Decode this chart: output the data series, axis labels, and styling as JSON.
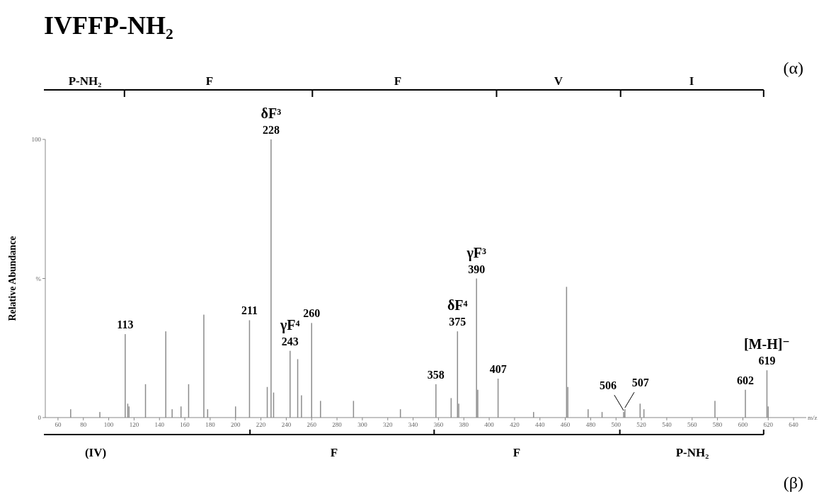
{
  "chart_data": {
    "type": "bar",
    "title": "IVFFP-NH₂",
    "xlabel": "m/z",
    "ylabel": "Relative Abundance",
    "x": [
      70,
      93,
      113,
      115,
      116,
      129,
      145,
      150,
      157,
      163,
      175,
      178,
      200,
      211,
      225,
      228,
      230,
      243,
      249,
      252,
      260,
      267,
      293,
      330,
      358,
      370,
      375,
      376,
      390,
      391,
      407,
      435,
      461,
      462,
      478,
      489,
      506,
      507,
      519,
      522,
      578,
      602,
      619,
      620
    ],
    "values": [
      3,
      2,
      30,
      5,
      4,
      12,
      31,
      3,
      4,
      12,
      37,
      3,
      4,
      35,
      11,
      100,
      9,
      24,
      21,
      8,
      34,
      6,
      6,
      3,
      12,
      7,
      31,
      5,
      50,
      10,
      14,
      2,
      47,
      11,
      3,
      2,
      2,
      3,
      5,
      3,
      6,
      10,
      17,
      4
    ],
    "color": "#8c8c8c",
    "xlim": [
      50,
      650
    ],
    "xticks": [
      60,
      80,
      100,
      120,
      140,
      160,
      180,
      200,
      220,
      240,
      260,
      280,
      300,
      320,
      340,
      360,
      380,
      400,
      420,
      440,
      460,
      480,
      500,
      520,
      540,
      560,
      580,
      600,
      620,
      640
    ],
    "ylim": [
      0,
      100
    ],
    "yticks": [
      0,
      {
        "value": 50,
        "label": "%"
      },
      100
    ],
    "grid": false,
    "annotations": [
      "(α)",
      "P-NH₂",
      "F",
      "F",
      "V",
      "I",
      "(β)",
      "(IV)",
      "F",
      "F",
      "P-NH₂",
      {
        "text": "113",
        "x": 113,
        "y": 30
      },
      {
        "text": "211",
        "x": 211,
        "y": 35
      },
      {
        "text": "228",
        "x": 228,
        "y": 100
      },
      {
        "text": "243",
        "x": 243,
        "y": 24
      },
      {
        "text": "260",
        "x": 260,
        "y": 34
      },
      {
        "text": "358",
        "x": 358,
        "y": 12
      },
      {
        "text": "375",
        "x": 375,
        "y": 31
      },
      {
        "text": "390",
        "x": 390,
        "y": 50
      },
      {
        "text": "407",
        "x": 407,
        "y": 14
      },
      {
        "text": "506",
        "x": 506,
        "y": 2
      },
      {
        "text": "507",
        "x": 507,
        "y": 3
      },
      {
        "text": "602",
        "x": 602,
        "y": 10
      },
      {
        "text": "619",
        "x": 619,
        "y": 17
      },
      {
        "text": "δF³",
        "x": 228,
        "y": 100
      },
      {
        "text": "γF⁴",
        "x": 243,
        "y": 24
      },
      {
        "text": "δF⁴",
        "x": 375,
        "y": 31
      },
      {
        "text": "γF³",
        "x": 390,
        "y": 50
      },
      {
        "text": "[M-H]⁻",
        "x": 619,
        "y": 17
      }
    ]
  }
}
